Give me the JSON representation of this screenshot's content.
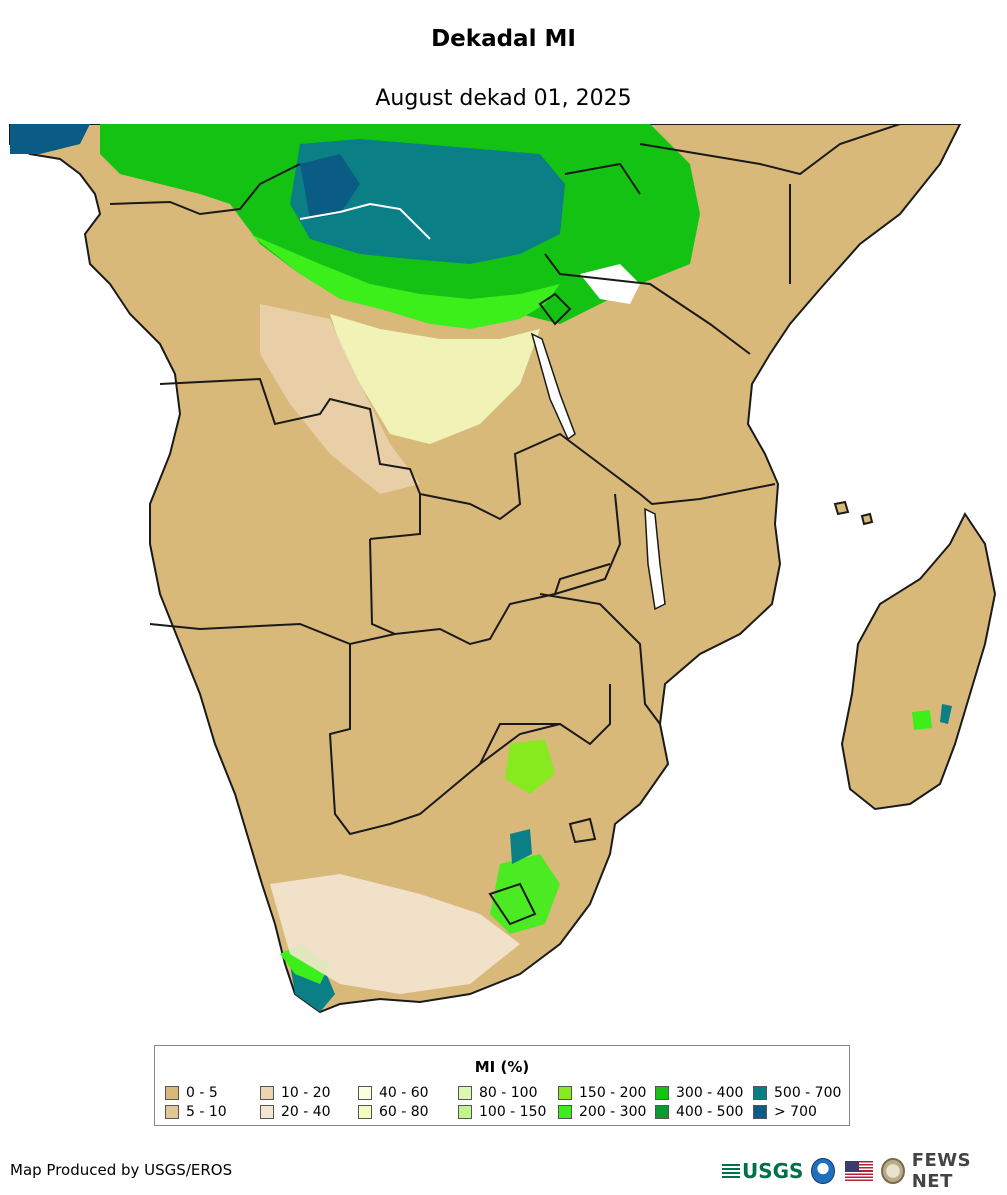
{
  "header": {
    "title": "Dekadal MI",
    "subtitle": "August dekad 01, 2025"
  },
  "legend": {
    "title": "MI (%)",
    "items": [
      {
        "label": "0 - 5",
        "color": "#d9b97a"
      },
      {
        "label": "5 - 10",
        "color": "#e0c795"
      },
      {
        "label": "10 - 20",
        "color": "#ebd5b3"
      },
      {
        "label": "20 - 40",
        "color": "#f3e6d2"
      },
      {
        "label": "40 - 60",
        "color": "#fdfde0"
      },
      {
        "label": "60 - 80",
        "color": "#f4fcc0"
      },
      {
        "label": "80 - 100",
        "color": "#dcf7b4"
      },
      {
        "label": "100 - 150",
        "color": "#bff58f"
      },
      {
        "label": "150 - 200",
        "color": "#86ea1e"
      },
      {
        "label": "200 - 300",
        "color": "#3cef1a"
      },
      {
        "label": "300 - 400",
        "color": "#14c214"
      },
      {
        "label": "400 - 500",
        "color": "#0a9a32"
      },
      {
        "label": "500 - 700",
        "color": "#0a7f86"
      },
      {
        "label": "> 700",
        "color": "#0b5c84"
      }
    ]
  },
  "footer": {
    "credit": "Map Produced by USGS/EROS",
    "usgs_label": "USGS",
    "fews_label": "FEWS NET"
  },
  "map": {
    "land_color": "#d9b97a",
    "border_color": "#1a1a1a",
    "wet_colors": [
      "#14c214",
      "#3cef1a",
      "#0a7f86",
      "#0b5c84",
      "#86ea1e",
      "#bff58f",
      "#f4fcc0",
      "#ebd5b3"
    ]
  }
}
